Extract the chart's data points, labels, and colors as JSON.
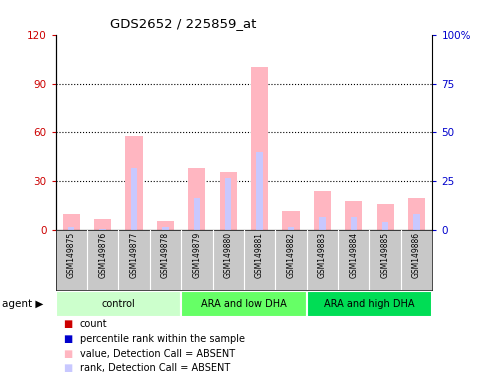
{
  "title": "GDS2652 / 225859_at",
  "samples": [
    "GSM149875",
    "GSM149876",
    "GSM149877",
    "GSM149878",
    "GSM149879",
    "GSM149880",
    "GSM149881",
    "GSM149882",
    "GSM149883",
    "GSM149884",
    "GSM149885",
    "GSM149886"
  ],
  "groups": [
    {
      "label": "control",
      "start": 0,
      "end": 3,
      "color": "#ccffcc"
    },
    {
      "label": "ARA and low DHA",
      "start": 4,
      "end": 7,
      "color": "#66ff66"
    },
    {
      "label": "ARA and high DHA",
      "start": 8,
      "end": 11,
      "color": "#00dd55"
    }
  ],
  "pink_values": [
    10,
    7,
    58,
    6,
    38,
    36,
    100,
    12,
    24,
    18,
    16,
    20
  ],
  "blue_values": [
    2,
    1,
    38,
    2,
    20,
    32,
    48,
    2,
    8,
    8,
    5,
    10
  ],
  "ylim_left": [
    0,
    120
  ],
  "ylim_right": [
    0,
    100
  ],
  "yticks_left": [
    0,
    30,
    60,
    90,
    120
  ],
  "ytick_labels_left": [
    "0",
    "30",
    "60",
    "90",
    "120"
  ],
  "yticks_right": [
    0,
    25,
    50,
    75,
    100
  ],
  "ytick_labels_right": [
    "0",
    "25",
    "50",
    "75",
    "100%"
  ],
  "left_tick_color": "#cc0000",
  "right_tick_color": "#0000cc",
  "label_bg_color": "#c8c8c8",
  "plot_bg_color": "#ffffff",
  "legend_items": [
    {
      "color": "#cc0000",
      "label": "count"
    },
    {
      "color": "#0000cc",
      "label": "percentile rank within the sample"
    },
    {
      "color": "#ffb6c1",
      "label": "value, Detection Call = ABSENT"
    },
    {
      "color": "#c8c8ff",
      "label": "rank, Detection Call = ABSENT"
    }
  ]
}
